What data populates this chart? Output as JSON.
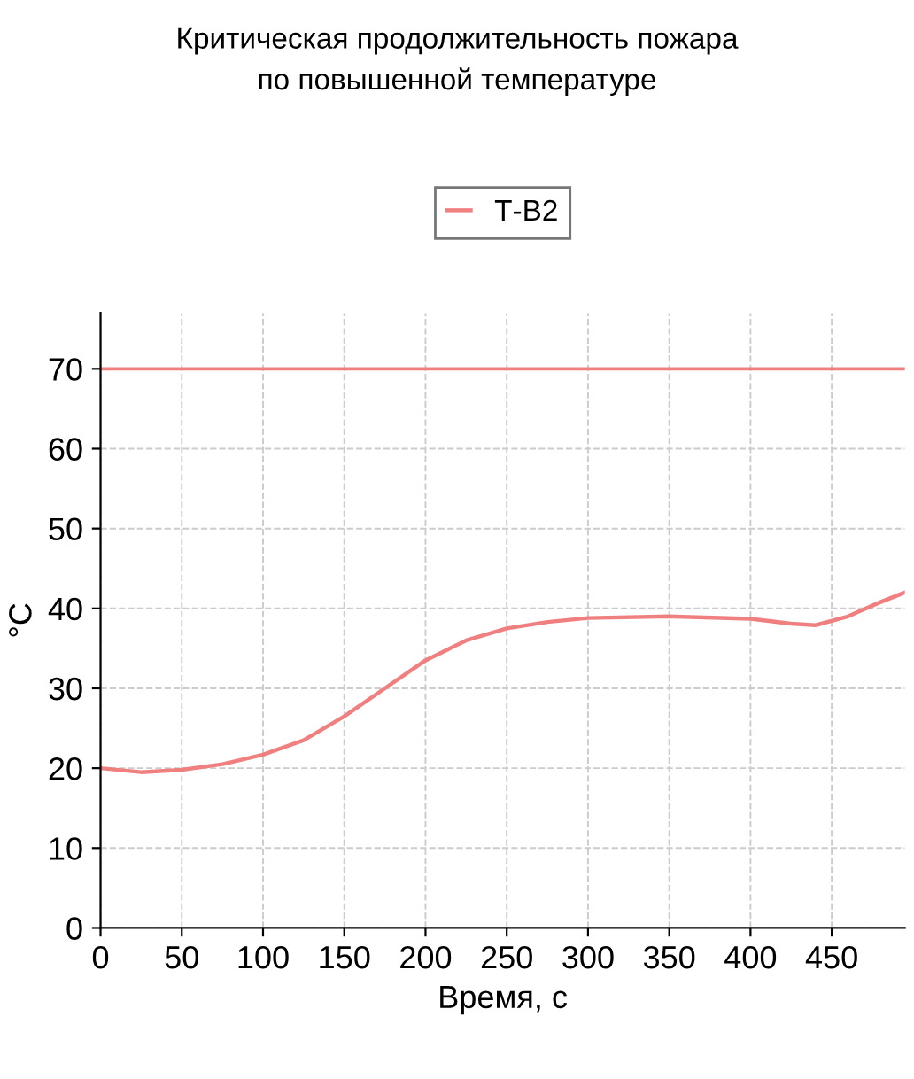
{
  "chart_data": {
    "type": "line",
    "title": "Критическая продолжительность пожара\nпо повышенной температуре",
    "xlabel": "Время, с",
    "ylabel": "°C",
    "x": [
      0,
      25,
      50,
      75,
      100,
      125,
      150,
      175,
      200,
      225,
      250,
      275,
      300,
      350,
      400,
      425,
      440,
      460,
      480,
      495
    ],
    "series": [
      {
        "name": "Т-В2",
        "color": "#f08080",
        "values": [
          20,
          19.5,
          19.8,
          20.5,
          21.7,
          23.5,
          26.5,
          30,
          33.5,
          36,
          37.5,
          38.3,
          38.8,
          39,
          38.7,
          38.1,
          37.9,
          39,
          40.8,
          42
        ]
      }
    ],
    "ref_lines": [
      {
        "axis": "y",
        "value": 70,
        "color": "#f08080"
      }
    ],
    "xlim": [
      0,
      495
    ],
    "ylim": [
      0,
      77
    ],
    "xticks": [
      0,
      50,
      100,
      150,
      200,
      250,
      300,
      350,
      400,
      450
    ],
    "yticks": [
      0,
      10,
      20,
      30,
      40,
      50,
      60,
      70
    ],
    "grid": true,
    "legend": "top",
    "marker": "none",
    "line_style": "solid"
  }
}
